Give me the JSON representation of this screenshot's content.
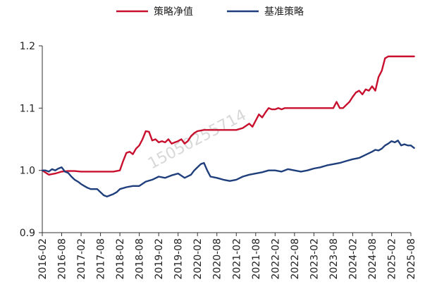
{
  "chart_data": {
    "type": "line",
    "title": "",
    "xlabel": "",
    "ylabel": "",
    "ylim": [
      0.9,
      1.2
    ],
    "y_ticks": [
      "0.9",
      "1.0",
      "1.1",
      "1.2"
    ],
    "y_tick_values": [
      0.9,
      1.0,
      1.1,
      1.2
    ],
    "x_ticks": [
      "2016-02",
      "2016-08",
      "2017-02",
      "2017-08",
      "2018-02",
      "2018-08",
      "2019-02",
      "2019-08",
      "2020-02",
      "2020-08",
      "2021-02",
      "2021-08",
      "2022-02",
      "2022-08",
      "2023-02",
      "2023-08",
      "2024-02",
      "2024-08",
      "2025-02",
      "2025-08"
    ],
    "grid": false,
    "legend_placement": "top-center",
    "watermark": "15050255714",
    "series": [
      {
        "name": "策略净值",
        "color": "#c8102e",
        "x": [
          "2016-02",
          "2016-04",
          "2016-06",
          "2016-08",
          "2016-10",
          "2016-12",
          "2017-02",
          "2017-04",
          "2017-06",
          "2017-08",
          "2017-10",
          "2017-12",
          "2018-02",
          "2018-03",
          "2018-04",
          "2018-05",
          "2018-06",
          "2018-07",
          "2018-08",
          "2018-09",
          "2018-10",
          "2018-11",
          "2018-12",
          "2019-01",
          "2019-02",
          "2019-03",
          "2019-04",
          "2019-05",
          "2019-06",
          "2019-07",
          "2019-08",
          "2019-09",
          "2019-10",
          "2019-11",
          "2019-12",
          "2020-01",
          "2020-02",
          "2020-04",
          "2020-06",
          "2020-08",
          "2020-10",
          "2020-12",
          "2021-02",
          "2021-04",
          "2021-06",
          "2021-07",
          "2021-08",
          "2021-09",
          "2021-10",
          "2021-11",
          "2021-12",
          "2022-01",
          "2022-02",
          "2022-03",
          "2022-04",
          "2022-05",
          "2022-06",
          "2022-08",
          "2022-10",
          "2022-12",
          "2023-02",
          "2023-04",
          "2023-06",
          "2023-08",
          "2023-09",
          "2023-10",
          "2023-11",
          "2023-12",
          "2024-01",
          "2024-02",
          "2024-03",
          "2024-04",
          "2024-05",
          "2024-06",
          "2024-07",
          "2024-08",
          "2024-09",
          "2024-10",
          "2024-11",
          "2024-12",
          "2025-01",
          "2025-02",
          "2025-04",
          "2025-06",
          "2025-08",
          "2025-09"
        ],
        "values": [
          1.0,
          0.993,
          0.995,
          0.998,
          0.999,
          0.999,
          0.998,
          0.998,
          0.998,
          0.998,
          0.998,
          0.998,
          1.0,
          1.015,
          1.028,
          1.03,
          1.026,
          1.035,
          1.04,
          1.05,
          1.063,
          1.062,
          1.048,
          1.05,
          1.045,
          1.047,
          1.045,
          1.05,
          1.043,
          1.045,
          1.047,
          1.05,
          1.043,
          1.047,
          1.055,
          1.06,
          1.063,
          1.065,
          1.065,
          1.065,
          1.065,
          1.065,
          1.065,
          1.068,
          1.075,
          1.07,
          1.08,
          1.09,
          1.085,
          1.093,
          1.1,
          1.098,
          1.098,
          1.1,
          1.098,
          1.1,
          1.1,
          1.1,
          1.1,
          1.1,
          1.1,
          1.1,
          1.1,
          1.1,
          1.11,
          1.1,
          1.1,
          1.105,
          1.11,
          1.118,
          1.125,
          1.128,
          1.122,
          1.13,
          1.128,
          1.135,
          1.128,
          1.15,
          1.16,
          1.18,
          1.183,
          1.183,
          1.183,
          1.183,
          1.183,
          1.183
        ]
      },
      {
        "name": "基准策略",
        "color": "#1f3e7c",
        "x": [
          "2016-02",
          "2016-03",
          "2016-04",
          "2016-05",
          "2016-06",
          "2016-07",
          "2016-08",
          "2016-09",
          "2016-10",
          "2016-11",
          "2016-12",
          "2017-01",
          "2017-02",
          "2017-03",
          "2017-04",
          "2017-05",
          "2017-06",
          "2017-07",
          "2017-08",
          "2017-09",
          "2017-10",
          "2017-11",
          "2017-12",
          "2018-01",
          "2018-02",
          "2018-04",
          "2018-06",
          "2018-08",
          "2018-10",
          "2018-12",
          "2019-02",
          "2019-04",
          "2019-06",
          "2019-08",
          "2019-10",
          "2019-12",
          "2020-01",
          "2020-02",
          "2020-03",
          "2020-04",
          "2020-05",
          "2020-06",
          "2020-08",
          "2020-10",
          "2020-12",
          "2021-02",
          "2021-04",
          "2021-06",
          "2021-08",
          "2021-10",
          "2021-12",
          "2022-02",
          "2022-04",
          "2022-06",
          "2022-08",
          "2022-10",
          "2022-12",
          "2023-02",
          "2023-04",
          "2023-06",
          "2023-08",
          "2023-10",
          "2023-12",
          "2024-02",
          "2024-04",
          "2024-06",
          "2024-08",
          "2024-09",
          "2024-10",
          "2024-11",
          "2024-12",
          "2025-01",
          "2025-02",
          "2025-03",
          "2025-04",
          "2025-05",
          "2025-06",
          "2025-07",
          "2025-08",
          "2025-09"
        ],
        "values": [
          1.0,
          1.0,
          0.998,
          1.002,
          1.0,
          1.003,
          1.005,
          0.998,
          0.996,
          0.99,
          0.985,
          0.982,
          0.978,
          0.975,
          0.972,
          0.97,
          0.97,
          0.97,
          0.965,
          0.96,
          0.958,
          0.96,
          0.962,
          0.965,
          0.97,
          0.973,
          0.975,
          0.975,
          0.982,
          0.985,
          0.99,
          0.988,
          0.992,
          0.995,
          0.988,
          0.993,
          1.0,
          1.005,
          1.01,
          1.012,
          1.0,
          0.99,
          0.988,
          0.985,
          0.983,
          0.985,
          0.99,
          0.993,
          0.995,
          0.997,
          1.0,
          1.0,
          0.998,
          1.002,
          1.0,
          0.998,
          1.0,
          1.003,
          1.005,
          1.008,
          1.01,
          1.012,
          1.015,
          1.018,
          1.02,
          1.025,
          1.03,
          1.033,
          1.032,
          1.035,
          1.04,
          1.043,
          1.047,
          1.045,
          1.048,
          1.04,
          1.042,
          1.04,
          1.04,
          1.036
        ]
      }
    ]
  }
}
